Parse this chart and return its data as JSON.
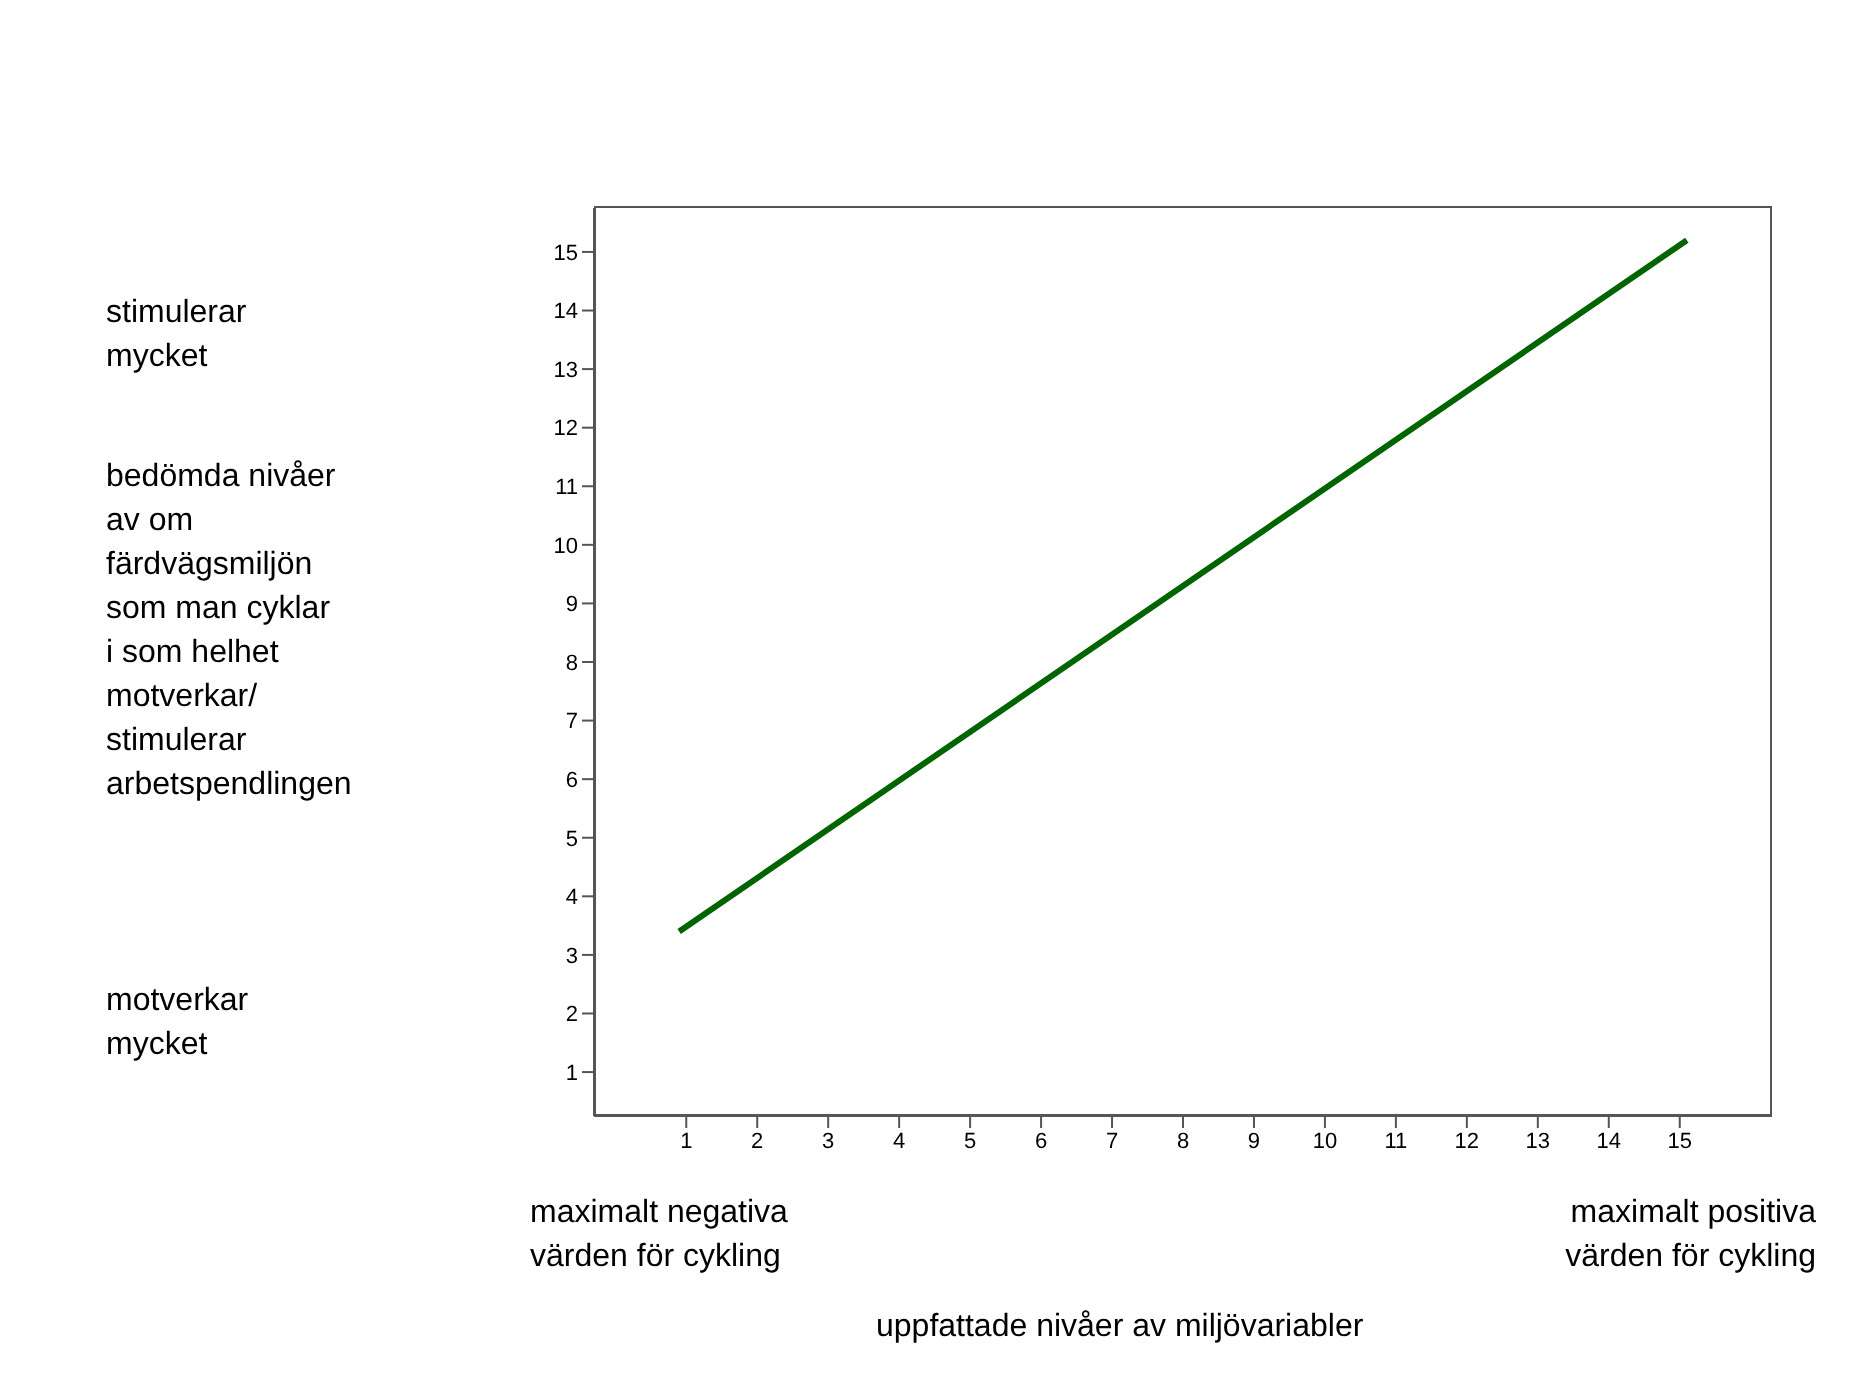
{
  "chart_data": {
    "type": "line",
    "xlabel": "uppfattade nivåer av miljövariabler",
    "annotations": [
      "stimulerar\nmycket",
      "bedömda nivåer\nav om\nfärdvägsmiljön\nsom man cyklar\ni som helhet\nmotverkar/\nstimulerar\narbetspendlingen",
      "motverkar\nmycket",
      "maximalt negativa\nvärden för cykling",
      "maximalt positiva\nvärden för cykling"
    ],
    "series": [
      {
        "color": "#006400",
        "x": [
          0.9,
          15.1
        ],
        "values": [
          3.4,
          15.2
        ]
      }
    ],
    "xlim": [
      -0.3,
      16.3
    ],
    "xticks": [
      1,
      2,
      3,
      4,
      5,
      6,
      7,
      8,
      9,
      10,
      11,
      12,
      13,
      14,
      15
    ],
    "ylim": [
      0.25,
      15.75
    ],
    "yticks": [
      1,
      2,
      3,
      4,
      5,
      6,
      7,
      8,
      9,
      10,
      11,
      12,
      13,
      14,
      15
    ],
    "grid": false,
    "marker": "none",
    "line_style": "solid"
  }
}
